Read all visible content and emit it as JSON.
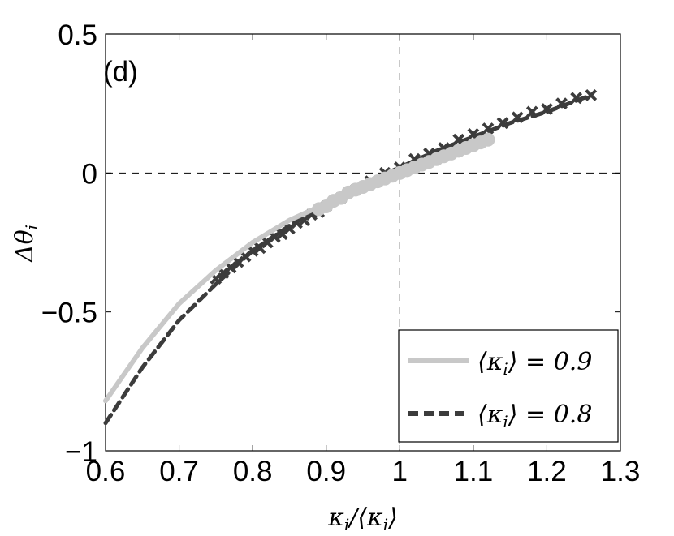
{
  "chart_data": {
    "type": "scatter",
    "panel_label": "(d)",
    "xlabel": "κ_i/⟨κ_i⟩",
    "ylabel": "Δθ_i",
    "xlim": [
      0.6,
      1.3
    ],
    "ylim": [
      -1,
      0.5
    ],
    "x_ticks": [
      0.6,
      0.7,
      0.8,
      0.9,
      1.0,
      1.1,
      1.2,
      1.3
    ],
    "x_tick_labels": [
      "0.6",
      "0.7",
      "0.8",
      "0.9",
      "1",
      "1.1",
      "1.2",
      "1.3"
    ],
    "y_ticks": [
      -1,
      -0.5,
      0,
      0.5
    ],
    "y_tick_labels": [
      "−1",
      "−0.5",
      "0",
      "0.5"
    ],
    "reference_lines": {
      "x": 1.0,
      "y": 0.0,
      "style": "dashed"
    },
    "legend": {
      "position": "bottom-right",
      "entries": [
        {
          "label": "⟨κ_i⟩ = 0.9",
          "color": "#c8c8c8",
          "style": "solid"
        },
        {
          "label": "⟨κ_i⟩ = 0.8",
          "color": "#3c3c3c",
          "style": "dashed"
        }
      ]
    },
    "series": [
      {
        "name": "⟨κ_i⟩ = 0.9 (fit)",
        "kind": "line",
        "color": "#c8c8c8",
        "style": "solid",
        "x": [
          0.6,
          0.65,
          0.7,
          0.75,
          0.8,
          0.85,
          0.9,
          0.95,
          1.0,
          1.05,
          1.1,
          1.12
        ],
        "y": [
          -0.82,
          -0.63,
          -0.47,
          -0.35,
          -0.25,
          -0.17,
          -0.11,
          -0.05,
          0.0,
          0.05,
          0.1,
          0.12
        ]
      },
      {
        "name": "⟨κ_i⟩ = 0.9 (points)",
        "kind": "points",
        "marker": "circle",
        "color": "#c8c8c8",
        "x": [
          0.89,
          0.9,
          0.91,
          0.92,
          0.93,
          0.94,
          0.95,
          0.96,
          0.97,
          0.98,
          0.99,
          1.0,
          1.01,
          1.02,
          1.03,
          1.04,
          1.05,
          1.06,
          1.07,
          1.08,
          1.09,
          1.1,
          1.11,
          1.12
        ],
        "y": [
          -0.13,
          -0.12,
          -0.1,
          -0.09,
          -0.07,
          -0.06,
          -0.05,
          -0.04,
          -0.03,
          -0.02,
          -0.01,
          0.0,
          0.01,
          0.02,
          0.03,
          0.04,
          0.05,
          0.06,
          0.07,
          0.08,
          0.09,
          0.1,
          0.11,
          0.12
        ]
      },
      {
        "name": "⟨κ_i⟩ = 0.8 (fit)",
        "kind": "line",
        "color": "#3c3c3c",
        "style": "dashed",
        "x": [
          0.6,
          0.65,
          0.7,
          0.75,
          0.8,
          0.85,
          0.9,
          0.95,
          1.0,
          1.05,
          1.1,
          1.15,
          1.2,
          1.25,
          1.26
        ],
        "y": [
          -0.9,
          -0.7,
          -0.53,
          -0.4,
          -0.28,
          -0.19,
          -0.11,
          -0.04,
          0.02,
          0.08,
          0.13,
          0.18,
          0.22,
          0.27,
          0.28
        ]
      },
      {
        "name": "⟨κ_i⟩ = 0.8 (points)",
        "kind": "points",
        "marker": "x",
        "color": "#3c3c3c",
        "x": [
          0.75,
          0.76,
          0.77,
          0.78,
          0.79,
          0.8,
          0.81,
          0.82,
          0.83,
          0.84,
          0.85,
          0.86,
          0.87,
          0.88,
          0.89,
          0.9,
          0.92,
          0.94,
          0.96,
          0.98,
          1.0,
          1.02,
          1.04,
          1.06,
          1.08,
          1.1,
          1.12,
          1.14,
          1.16,
          1.18,
          1.2,
          1.22,
          1.24,
          1.26
        ],
        "y": [
          -0.38,
          -0.36,
          -0.34,
          -0.32,
          -0.3,
          -0.28,
          -0.27,
          -0.25,
          -0.23,
          -0.22,
          -0.2,
          -0.18,
          -0.17,
          -0.15,
          -0.14,
          -0.12,
          -0.09,
          -0.06,
          -0.03,
          0.0,
          0.02,
          0.05,
          0.07,
          0.09,
          0.12,
          0.14,
          0.16,
          0.18,
          0.2,
          0.22,
          0.23,
          0.25,
          0.27,
          0.28
        ]
      }
    ]
  }
}
